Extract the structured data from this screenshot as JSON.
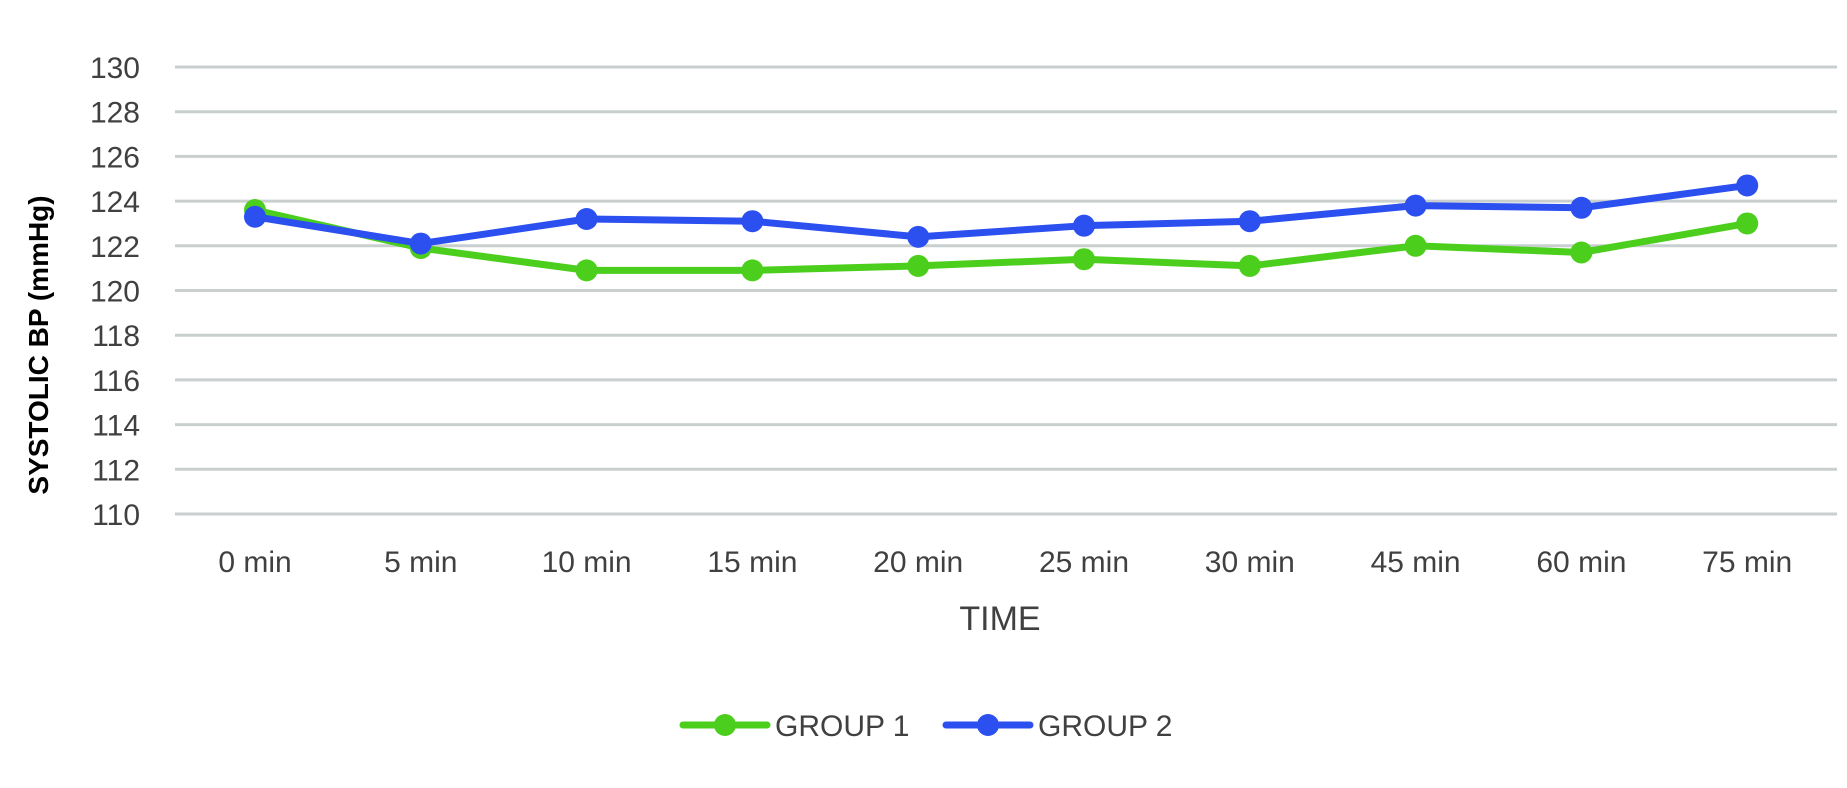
{
  "chart_data": {
    "type": "line",
    "title": "",
    "xlabel": "TIME",
    "ylabel": "SYSTOLIC BP (mmHg)",
    "categories": [
      "0 min",
      "5 min",
      "10 min",
      "15 min",
      "20 min",
      "25 min",
      "30 min",
      "45 min",
      "60 min",
      "75 min"
    ],
    "ylim": [
      110,
      130
    ],
    "yticks": [
      110,
      112,
      114,
      116,
      118,
      120,
      122,
      124,
      126,
      128,
      130
    ],
    "grid": true,
    "legend": "bottom-center",
    "series": [
      {
        "name": "GROUP 1",
        "color": "#4cce1d",
        "values": [
          123.6,
          121.9,
          120.9,
          120.9,
          121.1,
          121.4,
          121.1,
          122.0,
          121.7,
          123.0
        ]
      },
      {
        "name": "GROUP 2",
        "color": "#2c4ff0",
        "values": [
          123.3,
          122.1,
          123.2,
          123.1,
          122.4,
          122.9,
          123.1,
          123.8,
          123.7,
          124.7
        ]
      }
    ]
  }
}
